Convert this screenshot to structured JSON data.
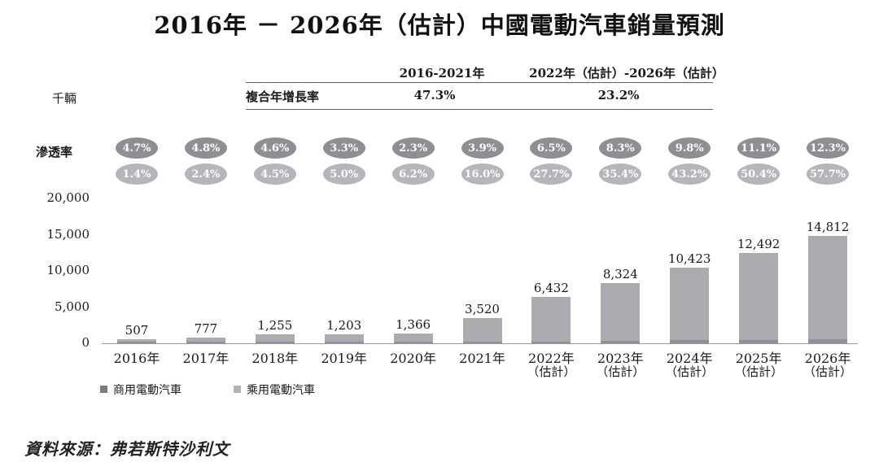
{
  "title": "2016年 － 2026年（估計）中國電動汽車銷量預測",
  "cagr_table": {
    "row_label": "複合年增長率",
    "columns": [
      {
        "period": "2016-2021年",
        "value": "47.3%"
      },
      {
        "period": "2022年（估計）-2026年（估計）",
        "value": "23.2%"
      }
    ]
  },
  "axis_unit_label": "千輛",
  "penetration_label": "滲透率",
  "legend": [
    {
      "label": "商用電動汽車",
      "color": "#7c7c81"
    },
    {
      "label": "乘用電動汽車",
      "color": "#b2b2b7"
    }
  ],
  "source": "資料來源：弗若斯特沙利文",
  "chart_data": {
    "type": "bar",
    "stacked": true,
    "title": "2016年 － 2026年（估計）中國電動汽車銷量預測",
    "ylabel": "千輛",
    "ylim": [
      0,
      20000
    ],
    "grid": false,
    "legend_position": "bottom-left",
    "yticks": [
      {
        "value": 0,
        "label": "0"
      },
      {
        "value": 5000,
        "label": "5,000"
      },
      {
        "value": 10000,
        "label": "10,000"
      },
      {
        "value": 15000,
        "label": "15,000"
      },
      {
        "value": 20000,
        "label": "20,000"
      }
    ],
    "categories": [
      {
        "label": "2016年",
        "sublabel": ""
      },
      {
        "label": "2017年",
        "sublabel": ""
      },
      {
        "label": "2018年",
        "sublabel": ""
      },
      {
        "label": "2019年",
        "sublabel": ""
      },
      {
        "label": "2020年",
        "sublabel": ""
      },
      {
        "label": "2021年",
        "sublabel": ""
      },
      {
        "label": "2022年",
        "sublabel": "（估計）"
      },
      {
        "label": "2023年",
        "sublabel": "（估計）"
      },
      {
        "label": "2024年",
        "sublabel": "（估計）"
      },
      {
        "label": "2025年",
        "sublabel": "（估計）"
      },
      {
        "label": "2026年",
        "sublabel": "（估計）"
      }
    ],
    "totals": [
      507,
      777,
      1255,
      1203,
      1366,
      3520,
      6432,
      8324,
      10423,
      12492,
      14812
    ],
    "total_labels": [
      "507",
      "777",
      "1,255",
      "1,203",
      "1,366",
      "3,520",
      "6,432",
      "8,324",
      "10,423",
      "12,492",
      "14,812"
    ],
    "series": [
      {
        "name": "商用電動汽車",
        "color": "#90909a"
      },
      {
        "name": "乘用電動汽車",
        "color": "#ababb0"
      }
    ],
    "penetration_rows": [
      {
        "name": "商用電動汽車",
        "color": "#8e8e93",
        "values": [
          "4.7%",
          "4.8%",
          "4.6%",
          "3.3%",
          "2.3%",
          "3.9%",
          "6.5%",
          "8.3%",
          "9.8%",
          "11.1%",
          "12.3%"
        ]
      },
      {
        "name": "乘用電動汽車",
        "color": "#b5b5ba",
        "values": [
          "1.4%",
          "2.4%",
          "4.5%",
          "5.0%",
          "6.2%",
          "16.0%",
          "27.7%",
          "35.4%",
          "43.2%",
          "50.4%",
          "57.7%"
        ]
      }
    ],
    "cagr": [
      {
        "period": "2016-2021年",
        "value": "47.3%"
      },
      {
        "period": "2022年（估計）-2026年（估計）",
        "value": "23.2%"
      }
    ]
  }
}
